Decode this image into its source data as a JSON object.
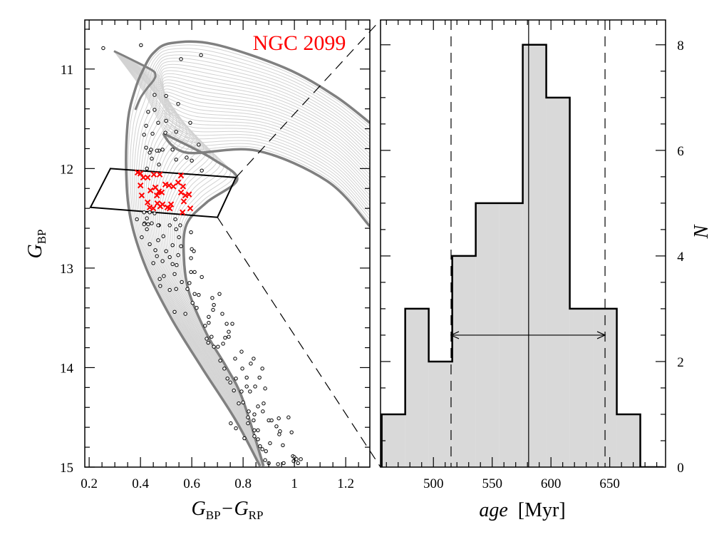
{
  "chart_data": [
    {
      "type": "scatter",
      "title": "NGC 2099",
      "title_color": "#ff0000",
      "xlabel_parts": [
        {
          "t": "G"
        },
        {
          "sub": "BP"
        },
        {
          "t": "−G"
        },
        {
          "sub": "RP"
        }
      ],
      "ylabel_parts": [
        {
          "t": "G"
        },
        {
          "sub": "BP"
        }
      ],
      "xlim": [
        0.183,
        1.294
      ],
      "ylim": [
        15.0,
        10.507
      ],
      "y_inverted": true,
      "x_ticks": [
        "0.2",
        "0.4",
        "0.6",
        "0.8",
        "1",
        "1.2"
      ],
      "y_ticks": [
        "11",
        "12",
        "13",
        "14",
        "15"
      ],
      "selection_box": [
        [
          0.283,
          12.0
        ],
        [
          0.772,
          12.09
        ],
        [
          0.7,
          12.49
        ],
        [
          0.205,
          12.39
        ]
      ],
      "isochrone_color": "#808080",
      "isochrone_grid_color": "#d2d2d2",
      "isochrones": {
        "young": [
          [
            0.866,
            14.99
          ],
          [
            0.769,
            14.52
          ],
          [
            0.639,
            14.0
          ],
          [
            0.519,
            13.5
          ],
          [
            0.422,
            13.0
          ],
          [
            0.361,
            12.5
          ],
          [
            0.344,
            12.0
          ],
          [
            0.352,
            11.5
          ],
          [
            0.38,
            11.2
          ],
          [
            0.408,
            11.02
          ],
          [
            0.45,
            10.84
          ],
          [
            0.519,
            10.74
          ],
          [
            0.686,
            10.75
          ],
          [
            0.964,
            10.99
          ],
          [
            1.158,
            11.27
          ],
          [
            1.294,
            11.54
          ]
        ],
        "old": [
          [
            0.88,
            14.99
          ],
          [
            0.797,
            14.31
          ],
          [
            0.736,
            14.0
          ],
          [
            0.658,
            13.66
          ],
          [
            0.589,
            13.24
          ],
          [
            0.569,
            12.88
          ],
          [
            0.58,
            12.56
          ],
          [
            0.658,
            12.34
          ],
          [
            0.777,
            12.11
          ],
          [
            0.686,
            11.91
          ],
          [
            0.547,
            11.72
          ],
          [
            0.491,
            11.66
          ],
          [
            0.58,
            11.84
          ],
          [
            0.852,
            11.82
          ],
          [
            1.13,
            12.13
          ],
          [
            1.294,
            12.58
          ]
        ],
        "hook": [
          [
            0.297,
            10.82
          ],
          [
            0.361,
            10.9
          ],
          [
            0.444,
            11.01
          ],
          [
            0.458,
            11.06
          ],
          [
            0.452,
            11.11
          ],
          [
            0.427,
            11.19
          ],
          [
            0.4,
            11.29
          ],
          [
            0.38,
            11.41
          ]
        ]
      },
      "members_color": "#ff0000",
      "selected_stars": [
        [
          0.389,
          12.04
        ],
        [
          0.411,
          12.09
        ],
        [
          0.428,
          12.09
        ],
        [
          0.452,
          12.06
        ],
        [
          0.475,
          12.06
        ],
        [
          0.558,
          12.07
        ],
        [
          0.4,
          12.17
        ],
        [
          0.439,
          12.22
        ],
        [
          0.458,
          12.19
        ],
        [
          0.472,
          12.23
        ],
        [
          0.483,
          12.24
        ],
        [
          0.497,
          12.16
        ],
        [
          0.511,
          12.17
        ],
        [
          0.528,
          12.18
        ],
        [
          0.547,
          12.14
        ],
        [
          0.566,
          12.18
        ],
        [
          0.558,
          12.24
        ],
        [
          0.575,
          12.27
        ],
        [
          0.589,
          12.26
        ],
        [
          0.405,
          12.27
        ],
        [
          0.464,
          12.27
        ],
        [
          0.569,
          12.33
        ],
        [
          0.428,
          12.34
        ],
        [
          0.466,
          12.35
        ],
        [
          0.486,
          12.36
        ],
        [
          0.505,
          12.39
        ],
        [
          0.519,
          12.36
        ],
        [
          0.436,
          12.39
        ],
        [
          0.45,
          12.4
        ],
        [
          0.514,
          12.4
        ],
        [
          0.594,
          12.4
        ],
        [
          0.564,
          12.44
        ],
        [
          0.477,
          12.38
        ],
        [
          0.4,
          12.05
        ]
      ],
      "stars": [
        [
          0.255,
          10.79
        ],
        [
          0.402,
          10.76
        ],
        [
          0.558,
          10.9
        ],
        [
          0.636,
          10.86
        ],
        [
          0.455,
          11.26
        ],
        [
          0.5,
          11.27
        ],
        [
          0.547,
          11.35
        ],
        [
          0.43,
          11.43
        ],
        [
          0.455,
          11.41
        ],
        [
          0.469,
          11.54
        ],
        [
          0.5,
          11.52
        ],
        [
          0.594,
          11.54
        ],
        [
          0.422,
          11.57
        ],
        [
          0.414,
          11.66
        ],
        [
          0.447,
          11.65
        ],
        [
          0.497,
          11.64
        ],
        [
          0.539,
          11.63
        ],
        [
          0.627,
          11.76
        ],
        [
          0.422,
          11.79
        ],
        [
          0.441,
          11.81
        ],
        [
          0.472,
          11.82
        ],
        [
          0.486,
          11.81
        ],
        [
          0.525,
          11.81
        ],
        [
          0.436,
          11.84
        ],
        [
          0.464,
          11.82
        ],
        [
          0.444,
          11.9
        ],
        [
          0.472,
          11.96
        ],
        [
          0.539,
          11.91
        ],
        [
          0.58,
          11.89
        ],
        [
          0.6,
          11.92
        ],
        [
          0.639,
          12.02
        ],
        [
          0.425,
          12.0
        ],
        [
          0.414,
          12.44
        ],
        [
          0.436,
          12.44
        ],
        [
          0.455,
          12.45
        ],
        [
          0.386,
          12.51
        ],
        [
          0.425,
          12.5
        ],
        [
          0.416,
          12.55
        ],
        [
          0.43,
          12.56
        ],
        [
          0.444,
          12.55
        ],
        [
          0.472,
          12.57
        ],
        [
          0.514,
          12.57
        ],
        [
          0.536,
          12.51
        ],
        [
          0.555,
          12.57
        ],
        [
          0.597,
          12.64
        ],
        [
          0.539,
          12.61
        ],
        [
          0.414,
          12.56
        ],
        [
          0.469,
          12.57
        ],
        [
          0.425,
          12.61
        ],
        [
          0.489,
          12.68
        ],
        [
          0.55,
          12.69
        ],
        [
          0.405,
          12.69
        ],
        [
          0.436,
          12.76
        ],
        [
          0.469,
          12.72
        ],
        [
          0.525,
          12.77
        ],
        [
          0.558,
          12.78
        ],
        [
          0.458,
          12.82
        ],
        [
          0.5,
          12.83
        ],
        [
          0.6,
          12.81
        ],
        [
          0.608,
          12.83
        ],
        [
          0.597,
          12.9
        ],
        [
          0.464,
          12.88
        ],
        [
          0.486,
          12.93
        ],
        [
          0.514,
          12.89
        ],
        [
          0.547,
          12.87
        ],
        [
          0.45,
          12.95
        ],
        [
          0.525,
          12.96
        ],
        [
          0.541,
          12.97
        ],
        [
          0.597,
          13.04
        ],
        [
          0.611,
          13.04
        ],
        [
          0.639,
          13.09
        ],
        [
          0.491,
          13.08
        ],
        [
          0.533,
          13.06
        ],
        [
          0.475,
          13.11
        ],
        [
          0.561,
          13.14
        ],
        [
          0.591,
          13.15
        ],
        [
          0.477,
          13.18
        ],
        [
          0.583,
          13.21
        ],
        [
          0.611,
          13.26
        ],
        [
          0.627,
          13.27
        ],
        [
          0.708,
          13.26
        ],
        [
          0.514,
          13.22
        ],
        [
          0.539,
          13.21
        ],
        [
          0.68,
          13.3
        ],
        [
          0.603,
          13.35
        ],
        [
          0.619,
          13.4
        ],
        [
          0.686,
          13.37
        ],
        [
          0.683,
          13.42
        ],
        [
          0.719,
          13.46
        ],
        [
          0.533,
          13.44
        ],
        [
          0.575,
          13.46
        ],
        [
          0.666,
          13.49
        ],
        [
          0.736,
          13.56
        ],
        [
          0.758,
          13.56
        ],
        [
          0.666,
          13.55
        ],
        [
          0.652,
          13.58
        ],
        [
          0.744,
          13.64
        ],
        [
          0.744,
          13.69
        ],
        [
          0.73,
          13.7
        ],
        [
          0.658,
          13.71
        ],
        [
          0.677,
          13.69
        ],
        [
          0.664,
          13.75
        ],
        [
          0.722,
          13.76
        ],
        [
          0.686,
          13.79
        ],
        [
          0.702,
          13.79
        ],
        [
          0.794,
          13.84
        ],
        [
          0.841,
          13.91
        ],
        [
          0.769,
          13.91
        ],
        [
          0.83,
          13.96
        ],
        [
          0.797,
          14.01
        ],
        [
          0.875,
          14.01
        ],
        [
          0.711,
          13.93
        ],
        [
          0.727,
          14.01
        ],
        [
          0.772,
          14.11
        ],
        [
          0.814,
          14.1
        ],
        [
          0.864,
          14.1
        ],
        [
          0.739,
          14.11
        ],
        [
          0.75,
          14.15
        ],
        [
          0.814,
          14.19
        ],
        [
          0.847,
          14.19
        ],
        [
          0.886,
          14.21
        ],
        [
          0.794,
          14.24
        ],
        [
          0.827,
          14.24
        ],
        [
          0.764,
          14.23
        ],
        [
          0.783,
          14.36
        ],
        [
          0.8,
          14.35
        ],
        [
          0.858,
          14.39
        ],
        [
          0.88,
          14.36
        ],
        [
          0.822,
          14.44
        ],
        [
          0.844,
          14.47
        ],
        [
          0.877,
          14.44
        ],
        [
          0.819,
          14.5
        ],
        [
          0.9,
          14.53
        ],
        [
          0.911,
          14.53
        ],
        [
          0.939,
          14.51
        ],
        [
          0.977,
          14.5
        ],
        [
          0.752,
          14.56
        ],
        [
          0.772,
          14.61
        ],
        [
          0.841,
          14.53
        ],
        [
          0.819,
          14.56
        ],
        [
          0.93,
          14.59
        ],
        [
          0.944,
          14.64
        ],
        [
          0.941,
          14.67
        ],
        [
          0.989,
          14.65
        ],
        [
          0.844,
          14.63
        ],
        [
          0.858,
          14.63
        ],
        [
          0.805,
          14.71
        ],
        [
          0.844,
          14.69
        ],
        [
          0.858,
          14.72
        ],
        [
          0.905,
          14.76
        ],
        [
          0.955,
          14.78
        ],
        [
          0.866,
          14.79
        ],
        [
          0.889,
          14.84
        ],
        [
          0.875,
          14.82
        ],
        [
          0.994,
          14.89
        ],
        [
          1.0,
          14.9
        ],
        [
          1.025,
          14.92
        ],
        [
          1.008,
          14.92
        ],
        [
          0.997,
          14.94
        ],
        [
          1.014,
          14.96
        ],
        [
          0.958,
          14.96
        ],
        [
          0.936,
          14.97
        ],
        [
          0.9,
          14.96
        ],
        [
          0.886,
          14.93
        ]
      ]
    },
    {
      "type": "bar",
      "subtype": "histogram",
      "xlabel": "age [Myr]",
      "ylabel": "N",
      "xlim": [
        455,
        697.5
      ],
      "ylim": [
        0,
        8.47
      ],
      "bin_edges": [
        456,
        476,
        496,
        516,
        536,
        556,
        576,
        596,
        616,
        636,
        656,
        676,
        696
      ],
      "values": [
        1,
        3,
        2,
        4,
        5,
        5,
        8,
        7,
        3,
        3,
        1,
        0
      ],
      "fill_color": "#d9d9d9",
      "x_ticks": [
        "500",
        "550",
        "600",
        "650"
      ],
      "y_ticks": [
        "0",
        "2",
        "4",
        "6",
        "8"
      ],
      "median": 581,
      "interval": [
        515,
        646
      ]
    }
  ]
}
